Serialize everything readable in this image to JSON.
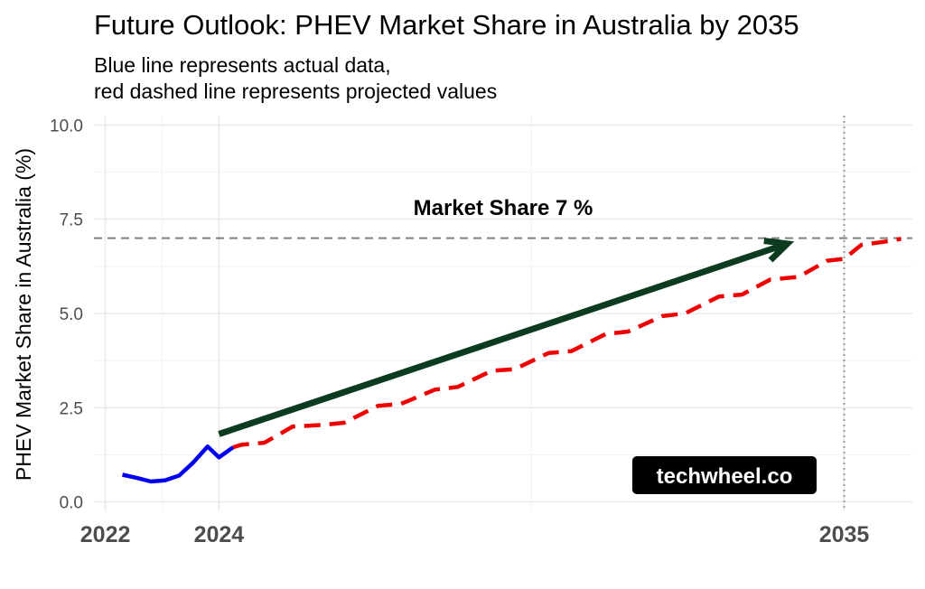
{
  "chart_data": {
    "type": "line",
    "title": "Future Outlook: PHEV Market Share in Australia by 2035",
    "subtitle_lines": [
      "Blue line represents actual data,",
      "red dashed line represents projected values"
    ],
    "xlabel": "",
    "ylabel": "PHEV Market Share in Australia (%)",
    "xlim": [
      2021.8,
      2036.2
    ],
    "ylim": [
      -0.25,
      10.25
    ],
    "x_ticks": [
      2022,
      2024,
      2035
    ],
    "x_tick_labels": [
      "2022",
      "2024",
      "2035"
    ],
    "y_ticks": [
      0,
      2.5,
      5,
      7.5,
      10
    ],
    "y_tick_labels": [
      "0.0",
      "2.5",
      "5.0",
      "7.5",
      "10.0"
    ],
    "grid": true,
    "legend": "none",
    "series": [
      {
        "style": "solid",
        "color": "#0000ee",
        "x": [
          2022.3,
          2022.55,
          2022.8,
          2023.05,
          2023.3,
          2023.55,
          2023.8,
          2024.0,
          2024.25
        ],
        "y": [
          0.72,
          0.64,
          0.54,
          0.57,
          0.7,
          1.05,
          1.47,
          1.18,
          1.45
        ]
      },
      {
        "style": "dashed",
        "color": "#ee0000",
        "x": [
          2024.25,
          2024.4,
          2024.8,
          2025.3,
          2025.8,
          2026.2,
          2026.8,
          2027.2,
          2027.8,
          2028.2,
          2028.8,
          2029.2,
          2029.8,
          2030.2,
          2030.8,
          2031.2,
          2031.8,
          2032.2,
          2032.8,
          2033.2,
          2033.7,
          2034.2,
          2034.7,
          2035.0,
          2035.3,
          2035.7,
          2036.0
        ],
        "y": [
          1.45,
          1.52,
          1.57,
          2.0,
          2.04,
          2.1,
          2.55,
          2.6,
          2.98,
          3.05,
          3.48,
          3.52,
          3.95,
          4.0,
          4.45,
          4.52,
          4.93,
          5.0,
          5.45,
          5.5,
          5.9,
          5.97,
          6.4,
          6.45,
          6.82,
          6.9,
          6.98
        ]
      }
    ],
    "reference_lines": {
      "horizontal": {
        "y": 7,
        "style": "dashed",
        "color": "#808080"
      },
      "vertical": {
        "x": 2035,
        "style": "dotted",
        "color": "#999999"
      }
    },
    "annotation": {
      "text": "Market Share 7 %",
      "x": 2029.0,
      "y": 7.8
    },
    "arrow": {
      "from": [
        2024.0,
        1.8
      ],
      "to": [
        2034.0,
        6.85
      ],
      "color": "#0d3b20"
    },
    "watermark": "techwheel.co"
  }
}
